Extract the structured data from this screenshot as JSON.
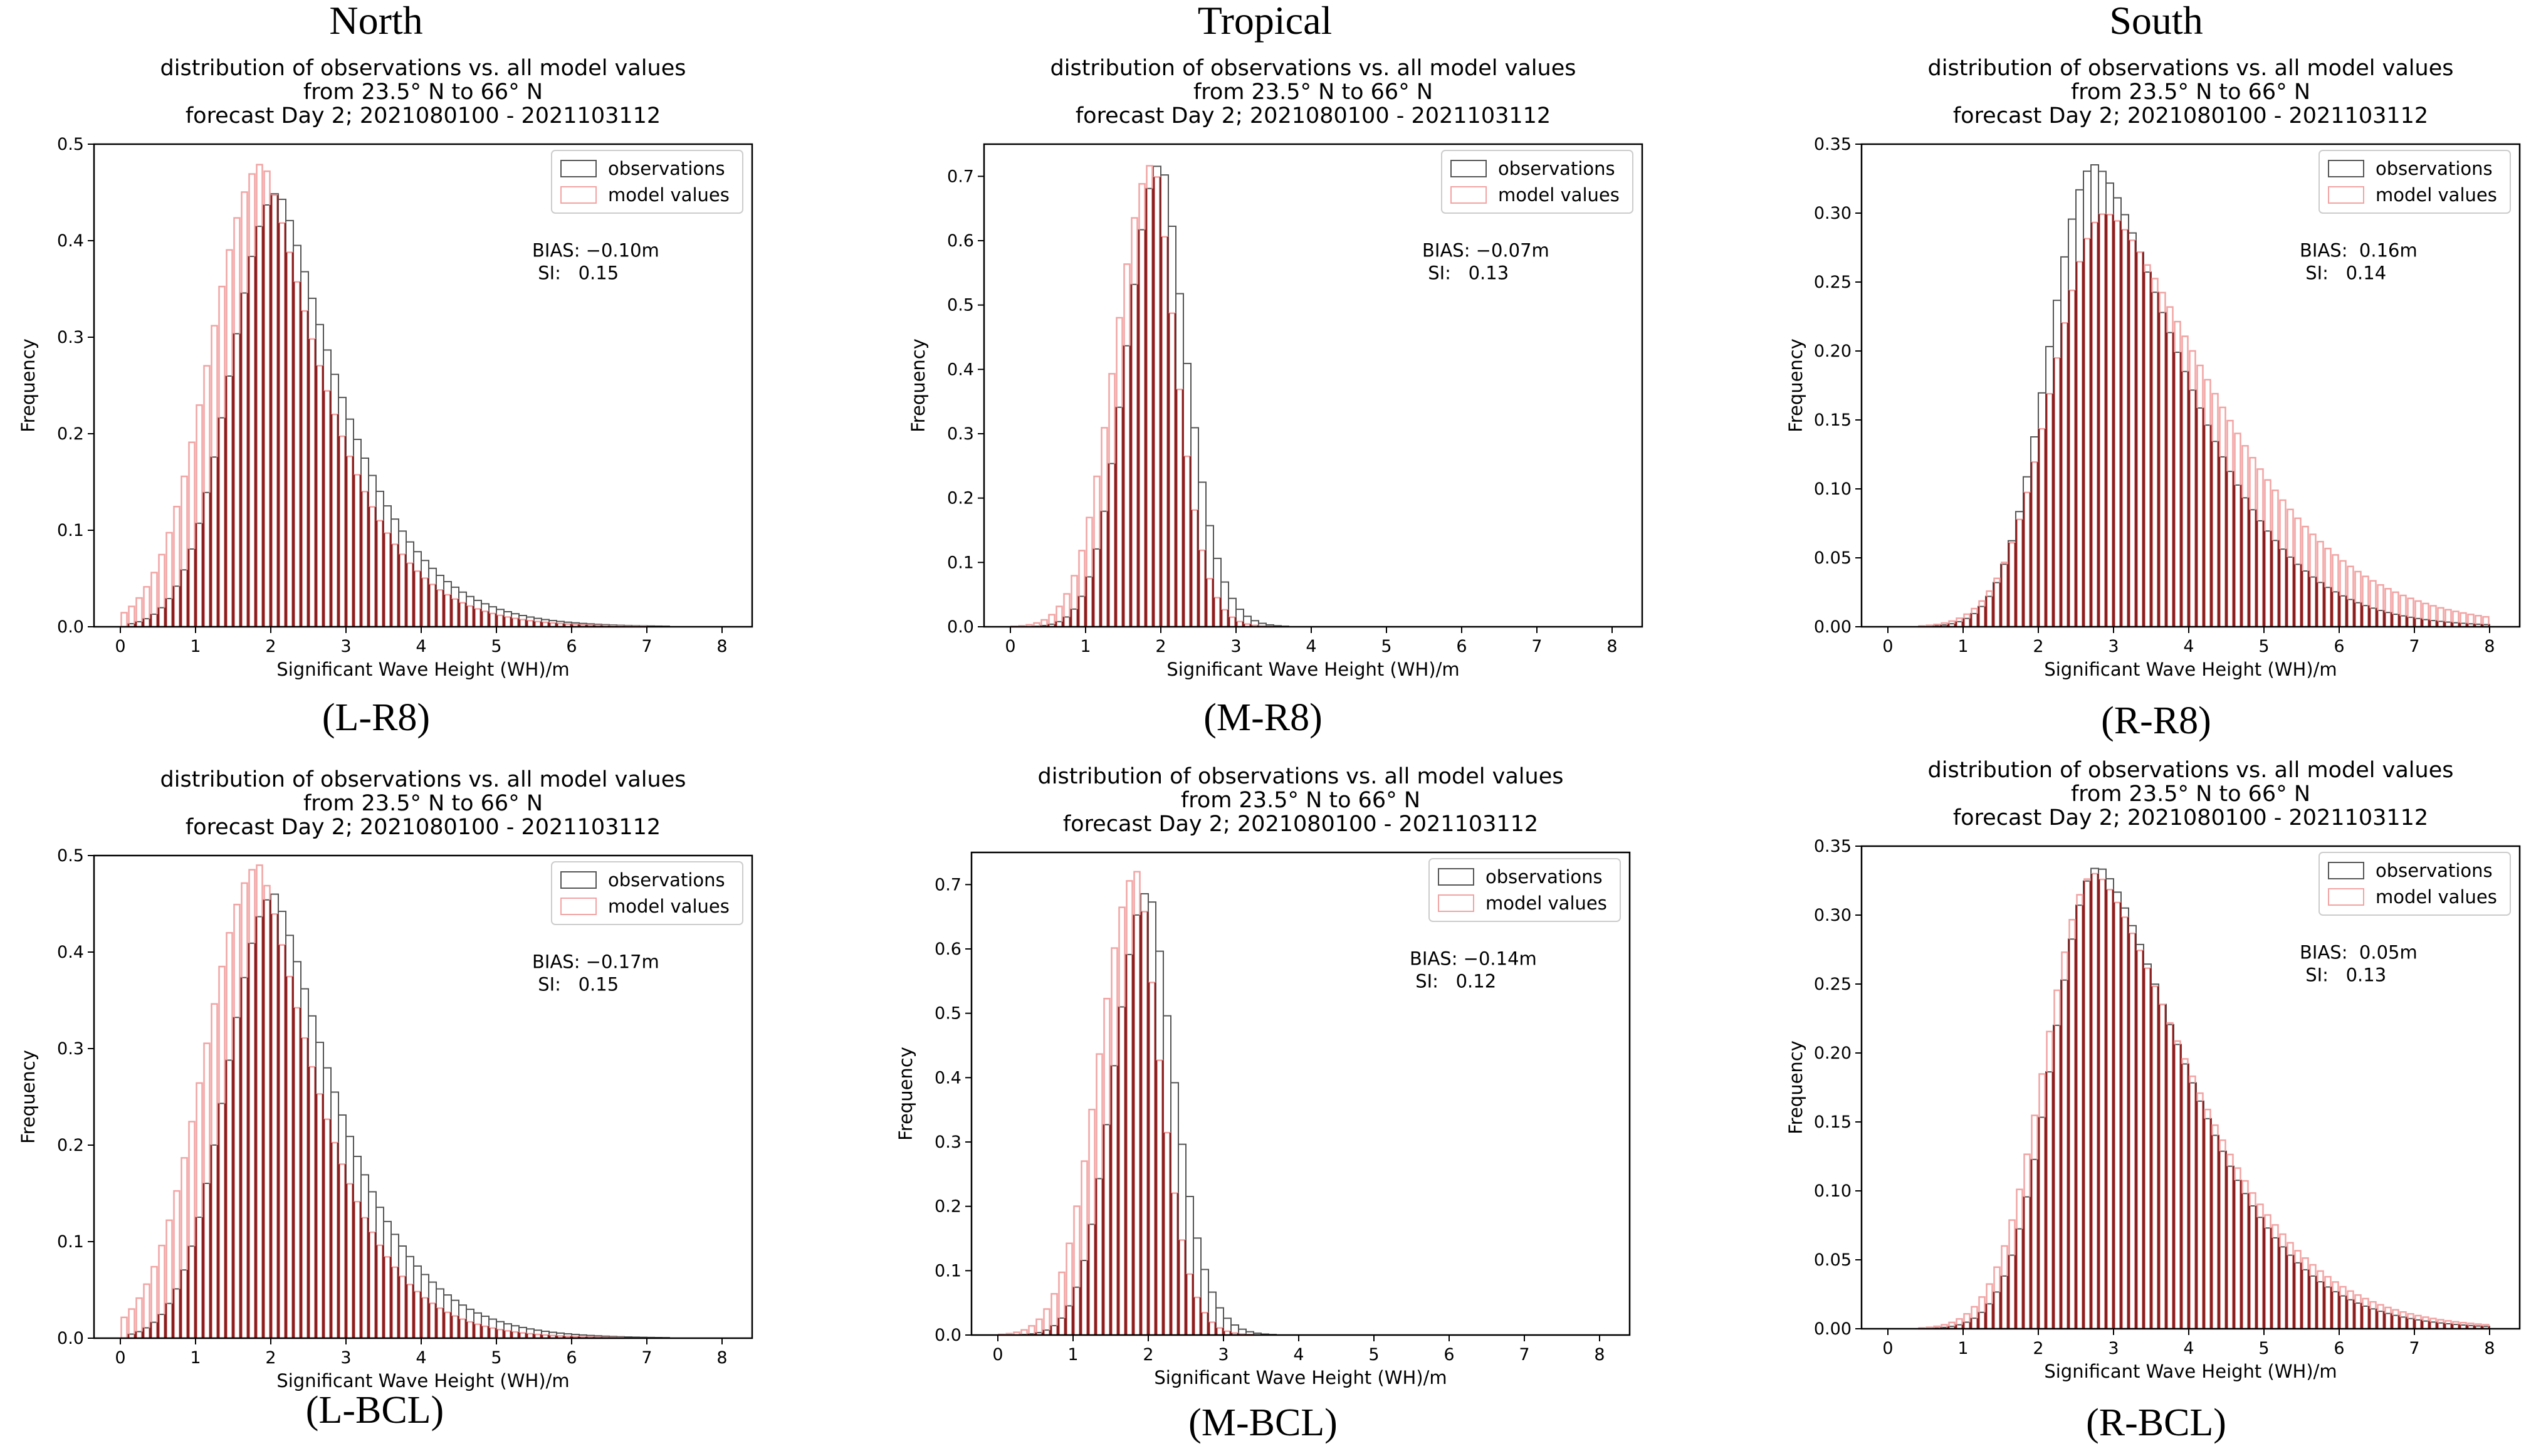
{
  "column_titles": [
    "North",
    "Tropical",
    "South"
  ],
  "colors": {
    "observations_edge": "#555555",
    "model_edge": "#f2a3a3",
    "overlap_edge": "#8b1e1e",
    "axis": "#000000"
  },
  "legend_labels": [
    "observations",
    "model values"
  ],
  "chart_data": [
    {
      "id": "L-R8",
      "tag": "(L-R8)",
      "type": "bar",
      "title": [
        "distribution of observations vs. all model values",
        "from 23.5° N to 66° N",
        "forecast Day 2; 2021080100 - 2021103112"
      ],
      "xlabel": "Significant Wave Height (WH)/m",
      "ylabel": "Frequency",
      "xlim": [
        -0.35,
        8.4
      ],
      "ylim": [
        0,
        0.5
      ],
      "xticks": [
        "0",
        "1",
        "2",
        "3",
        "4",
        "5",
        "6",
        "7",
        "8"
      ],
      "yticks": [
        "0.0",
        "0.1",
        "0.2",
        "0.3",
        "0.4",
        "0.5"
      ],
      "legend_position": "top-right",
      "annotation": [
        "BIAS: −0.10m",
        " SI:   0.15"
      ],
      "bin_width": 0.1,
      "series": [
        {
          "name": "observations",
          "peak_x": 2.1,
          "peak_y": 0.45,
          "sigma_left": 0.62,
          "tail_scale": 1.2,
          "tail_power": 1.3,
          "floor_start": 0.1
        },
        {
          "name": "model values",
          "peak_x": 1.9,
          "peak_y": 0.48,
          "sigma_left": 0.7,
          "tail_scale": 1.15,
          "tail_power": 1.3,
          "floor_start": 0.05
        }
      ]
    },
    {
      "id": "M-R8",
      "tag": "(M-R8)",
      "type": "bar",
      "title": [
        "distribution of observations vs. all model values",
        "from 23.5° N to 66° N",
        "forecast Day 2; 2021080100 - 2021103112"
      ],
      "xlabel": "Significant Wave Height (WH)/m",
      "ylabel": "Frequency",
      "xlim": [
        -0.35,
        8.4
      ],
      "ylim": [
        0,
        0.75
      ],
      "xticks": [
        "0",
        "1",
        "2",
        "3",
        "4",
        "5",
        "6",
        "7",
        "8"
      ],
      "yticks": [
        "0.0",
        "0.1",
        "0.2",
        "0.3",
        "0.4",
        "0.5",
        "0.6",
        "0.7"
      ],
      "legend_position": "top-right",
      "annotation": [
        "BIAS: −0.07m",
        " SI:   0.13"
      ],
      "bin_width": 0.1,
      "series": [
        {
          "name": "observations",
          "peak_x": 2.0,
          "peak_y": 0.72,
          "sigma_left": 0.45,
          "tail_scale": 0.5,
          "tail_power": 1.6,
          "floor_start": 0.1
        },
        {
          "name": "model values",
          "peak_x": 1.9,
          "peak_y": 0.72,
          "sigma_left": 0.5,
          "tail_scale": 0.45,
          "tail_power": 1.6,
          "floor_start": 0.05
        }
      ]
    },
    {
      "id": "R-R8",
      "tag": "(R-R8)",
      "type": "bar",
      "title": [
        "distribution of observations vs. all model values",
        "from 23.5° N to 66° N",
        "forecast Day 2; 2021080100 - 2021103112"
      ],
      "xlabel": "Significant Wave Height (WH)/m",
      "ylabel": "Frequency",
      "xlim": [
        -0.35,
        8.4
      ],
      "ylim": [
        0,
        0.35
      ],
      "xticks": [
        "0",
        "1",
        "2",
        "3",
        "4",
        "5",
        "6",
        "7",
        "8"
      ],
      "yticks": [
        "0.00",
        "0.05",
        "0.10",
        "0.15",
        "0.20",
        "0.25",
        "0.30",
        "0.35"
      ],
      "legend_position": "top-right",
      "annotation": [
        "BIAS:  0.16m",
        " SI:   0.14"
      ],
      "bin_width": 0.1,
      "series": [
        {
          "name": "observations",
          "peak_x": 2.75,
          "peak_y": 0.335,
          "sigma_left": 0.6,
          "tail_scale": 1.7,
          "tail_power": 1.5,
          "floor_start": 0.3
        },
        {
          "name": "model values",
          "peak_x": 2.9,
          "peak_y": 0.3,
          "sigma_left": 0.7,
          "tail_scale": 2.1,
          "tail_power": 1.5,
          "floor_start": 0.3
        }
      ]
    },
    {
      "id": "L-BCL",
      "tag": "(L-BCL)",
      "type": "bar",
      "title": [
        "distribution of observations vs. all model values",
        "from 23.5° N to 66° N",
        "forecast Day 2; 2021080100 - 2021103112"
      ],
      "xlabel": "Significant Wave Height (WH)/m",
      "ylabel": "Frequency",
      "xlim": [
        -0.35,
        8.4
      ],
      "ylim": [
        0,
        0.5
      ],
      "xticks": [
        "0",
        "1",
        "2",
        "3",
        "4",
        "5",
        "6",
        "7",
        "8"
      ],
      "yticks": [
        "0.0",
        "0.1",
        "0.2",
        "0.3",
        "0.4",
        "0.5"
      ],
      "legend_position": "top-right",
      "annotation": [
        "BIAS: −0.17m",
        " SI:   0.15"
      ],
      "bin_width": 0.1,
      "series": [
        {
          "name": "observations",
          "peak_x": 2.05,
          "peak_y": 0.46,
          "sigma_left": 0.62,
          "tail_scale": 1.2,
          "tail_power": 1.3,
          "floor_start": 0.1
        },
        {
          "name": "model values",
          "peak_x": 1.85,
          "peak_y": 0.49,
          "sigma_left": 0.72,
          "tail_scale": 1.1,
          "tail_power": 1.3,
          "floor_start": 0.05
        }
      ]
    },
    {
      "id": "M-BCL",
      "tag": "(M-BCL)",
      "type": "bar",
      "title": [
        "distribution of observations vs. all model values",
        "from 23.5° N to 66° N",
        "forecast Day 2; 2021080100 - 2021103112"
      ],
      "xlabel": "Significant Wave Height (WH)/m",
      "ylabel": "Frequency",
      "xlim": [
        -0.35,
        8.4
      ],
      "ylim": [
        0,
        0.75
      ],
      "xticks": [
        "0",
        "1",
        "2",
        "3",
        "4",
        "5",
        "6",
        "7",
        "8"
      ],
      "yticks": [
        "0.0",
        "0.1",
        "0.2",
        "0.3",
        "0.4",
        "0.5",
        "0.6",
        "0.7"
      ],
      "legend_position": "top-right",
      "annotation": [
        "BIAS: −0.14m",
        " SI:   0.12"
      ],
      "bin_width": 0.1,
      "series": [
        {
          "name": "observations",
          "peak_x": 2.0,
          "peak_y": 0.69,
          "sigma_left": 0.45,
          "tail_scale": 0.5,
          "tail_power": 1.6,
          "floor_start": 0.1
        },
        {
          "name": "model values",
          "peak_x": 1.85,
          "peak_y": 0.72,
          "sigma_left": 0.5,
          "tail_scale": 0.45,
          "tail_power": 1.6,
          "floor_start": 0.05
        }
      ]
    },
    {
      "id": "R-BCL",
      "tag": "(R-BCL)",
      "type": "bar",
      "title": [
        "distribution of observations vs. all model values",
        "from 23.5° N to 66° N",
        "forecast Day 2; 2021080100 - 2021103112"
      ],
      "xlabel": "Significant Wave Height (WH)/m",
      "ylabel": "Frequency",
      "xlim": [
        -0.35,
        8.4
      ],
      "ylim": [
        0,
        0.35
      ],
      "xticks": [
        "0",
        "1",
        "2",
        "3",
        "4",
        "5",
        "6",
        "7",
        "8"
      ],
      "yticks": [
        "0.00",
        "0.05",
        "0.10",
        "0.15",
        "0.20",
        "0.25",
        "0.30",
        "0.35"
      ],
      "legend_position": "top-right",
      "annotation": [
        "BIAS:  0.05m",
        " SI:   0.13"
      ],
      "bin_width": 0.1,
      "series": [
        {
          "name": "observations",
          "peak_x": 2.8,
          "peak_y": 0.335,
          "sigma_left": 0.6,
          "tail_scale": 1.7,
          "tail_power": 1.5,
          "floor_start": 0.3
        },
        {
          "name": "model values",
          "peak_x": 2.75,
          "peak_y": 0.33,
          "sigma_left": 0.65,
          "tail_scale": 1.85,
          "tail_power": 1.5,
          "floor_start": 0.3
        }
      ]
    }
  ]
}
